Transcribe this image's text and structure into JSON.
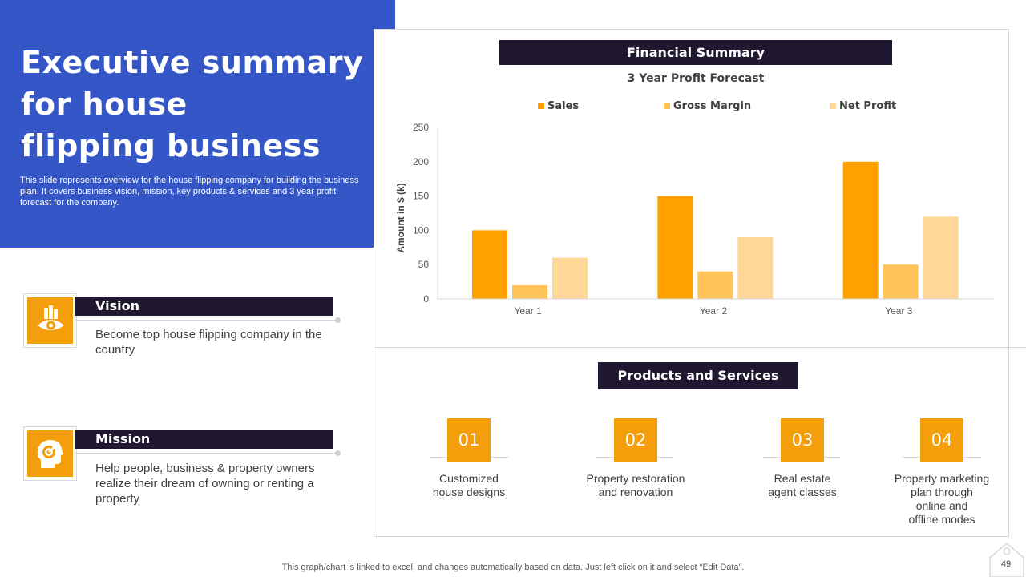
{
  "header": {
    "title_lines": [
      "Executive summary",
      "for house",
      "flipping business"
    ],
    "subtitle": "This slide represents overview for the house flipping company for building the business plan. It covers business vision, mission, key products & services and 3 year profit forecast for the company."
  },
  "vision": {
    "label": "Vision",
    "text": "Become top house flipping company in the country",
    "icon": "vision-eye-icon"
  },
  "mission": {
    "label": "Mission",
    "text": "Help people, business & property owners realize their dream of owning or renting a property",
    "icon": "target-head-icon"
  },
  "financial": {
    "bar_label": "Financial Summary"
  },
  "chart_data": {
    "type": "bar",
    "title": "3 Year Profit Forecast",
    "categories": [
      "Year 1",
      "Year 2",
      "Year 3"
    ],
    "series": [
      {
        "name": "Sales",
        "values": [
          100,
          150,
          200
        ],
        "color": "#FFA000"
      },
      {
        "name": "Gross Margin",
        "values": [
          20,
          40,
          50
        ],
        "color": "#FFC35A"
      },
      {
        "name": "Net Profit",
        "values": [
          60,
          90,
          120
        ],
        "color": "#FFD797"
      }
    ],
    "xlabel": "",
    "ylabel": "Amount in $ (k)",
    "ylim": [
      0,
      250
    ],
    "yticks": [
      0,
      50,
      100,
      150,
      200,
      250
    ],
    "legend": "top",
    "grid": false
  },
  "products": {
    "bar_label": "Products and Services",
    "items": [
      {
        "num": "01",
        "lines": [
          "Customized",
          "house designs"
        ]
      },
      {
        "num": "02",
        "lines": [
          "Property restoration",
          "and renovation"
        ]
      },
      {
        "num": "03",
        "lines": [
          "Real estate",
          "agent classes"
        ]
      },
      {
        "num": "04",
        "lines": [
          "Property marketing",
          "plan through",
          "online and",
          "offline modes"
        ]
      }
    ]
  },
  "footer": {
    "note": "This graph/chart is linked to excel,  and changes automatically based on data. Just left click on it and select “Edit Data”.",
    "page": "49"
  },
  "colors": {
    "blue": "#3556C6",
    "dark": "#1F1830",
    "orange": "#F59E0B"
  }
}
